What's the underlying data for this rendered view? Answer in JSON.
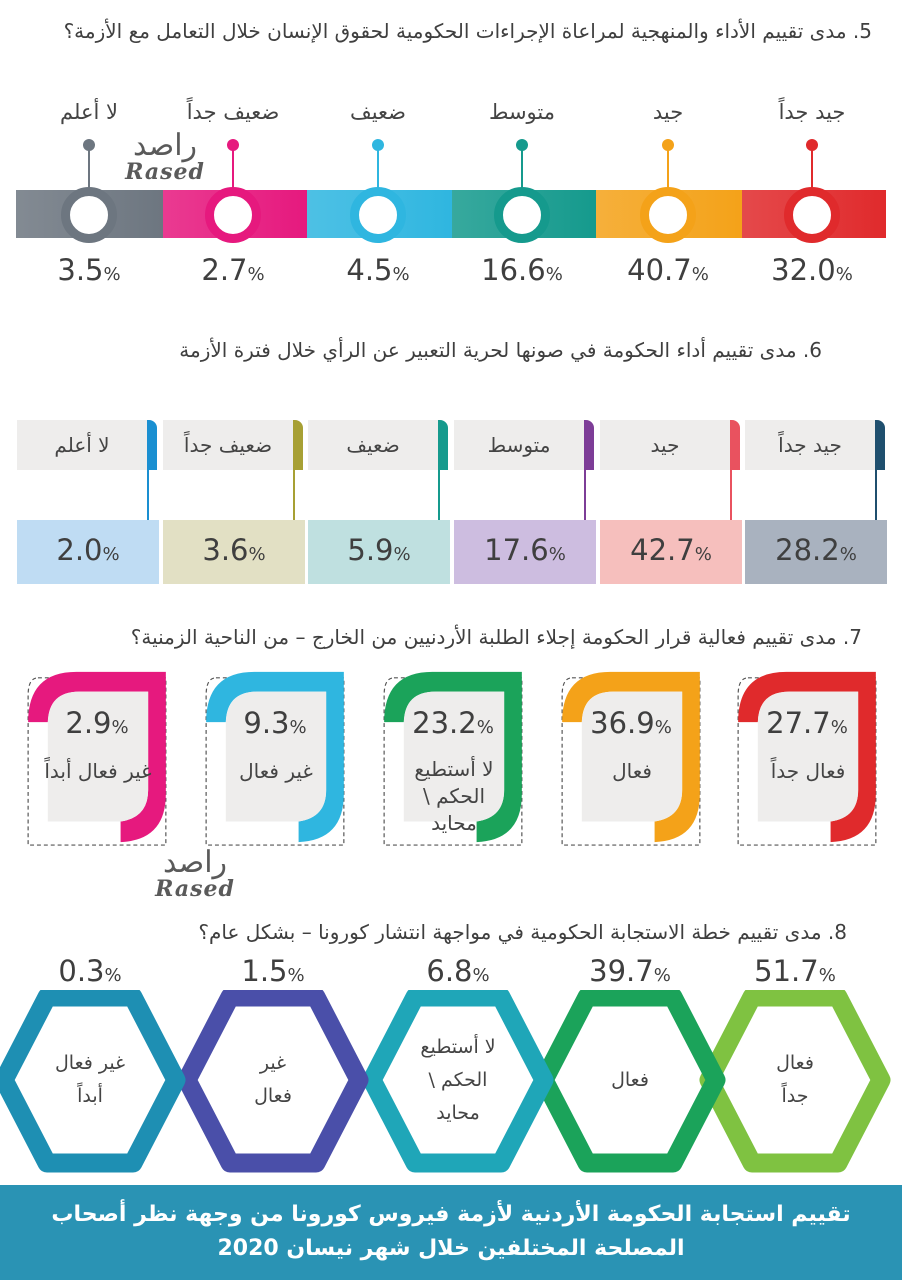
{
  "watermark": {
    "arabic": "راصد",
    "latin": "Rased"
  },
  "footer": {
    "line1": "تقييم استجابة الحكومة الأردنية لأزمة فيروس كورونا من وجهة نظر أصحاب",
    "line2": "المصلحة المختلفين خلال شهر نيسان 2020"
  },
  "colors": {
    "red": "#e02a2c",
    "orange": "#f4a219",
    "teal": "#159a8d",
    "cyan": "#2fb6e0",
    "magenta": "#e6197e",
    "gray": "#6d7680",
    "navy": "#1f4f6e",
    "pink": "#e9525f",
    "purple": "#7d3d97",
    "olive": "#a7a034",
    "blue": "#1a8fd1",
    "green": "#1ba35a",
    "lime": "#7fc241",
    "indigo": "#4a4fa9",
    "footer": "#2a93b4"
  },
  "chart_data": [
    {
      "type": "bar",
      "title": "5. مدى تقييم الأداء والمنهجية لمراعاة الإجراءات الحكومية لحقوق الإنسان خلال التعامل مع الأزمة؟",
      "categories": [
        "جيد جداً",
        "جيد",
        "متوسط",
        "ضعيف",
        "ضعيف جداً",
        "لا أعلم"
      ],
      "values": [
        32.0,
        40.7,
        16.6,
        4.5,
        2.7,
        3.5
      ],
      "labels": [
        "32.0",
        "40.7",
        "16.6",
        "4.5",
        "2.7",
        "3.5"
      ],
      "unit": "%"
    },
    {
      "type": "bar",
      "title": "6. مدى تقييم أداء الحكومة في صونها لحرية التعبير عن الرأي خلال فترة الأزمة",
      "categories": [
        "جيد جداً",
        "جيد",
        "متوسط",
        "ضعيف",
        "ضعيف جداً",
        "لا أعلم"
      ],
      "values": [
        28.2,
        42.7,
        17.6,
        5.9,
        3.6,
        2.0
      ],
      "labels": [
        "28.2",
        "42.7",
        "17.6",
        "5.9",
        "3.6",
        "2.0"
      ],
      "unit": "%"
    },
    {
      "type": "bar",
      "title": "7. مدى تقييم فعالية قرار الحكومة إجلاء الطلبة الأردنيين من الخارج – من الناحية الزمنية؟",
      "categories": [
        [
          "فعال جداً"
        ],
        [
          "فعال"
        ],
        [
          "لا أستطيع",
          "الحكم \\",
          "محايد"
        ],
        [
          "غير فعال"
        ],
        [
          "غير فعال أبداً"
        ]
      ],
      "values": [
        27.7,
        36.9,
        23.2,
        9.3,
        2.9
      ],
      "labels": [
        "27.7",
        "36.9",
        "23.2",
        "9.3",
        "2.9"
      ],
      "unit": "%"
    },
    {
      "type": "bar",
      "title": "8. مدى تقييم خطة الاستجابة الحكومية في مواجهة انتشار كورونا – بشكل عام؟",
      "categories": [
        [
          "فعال",
          "جداً"
        ],
        [
          "فعال"
        ],
        [
          "لا أستطيع",
          "الحكم \\",
          "محايد"
        ],
        [
          "غير",
          "فعال"
        ],
        [
          "غير فعال",
          "أبداً"
        ]
      ],
      "values": [
        51.7,
        39.7,
        6.8,
        1.5,
        0.3
      ],
      "labels": [
        "51.7",
        "39.7",
        "6.8",
        "1.5",
        "0.3"
      ],
      "unit": "%"
    }
  ]
}
